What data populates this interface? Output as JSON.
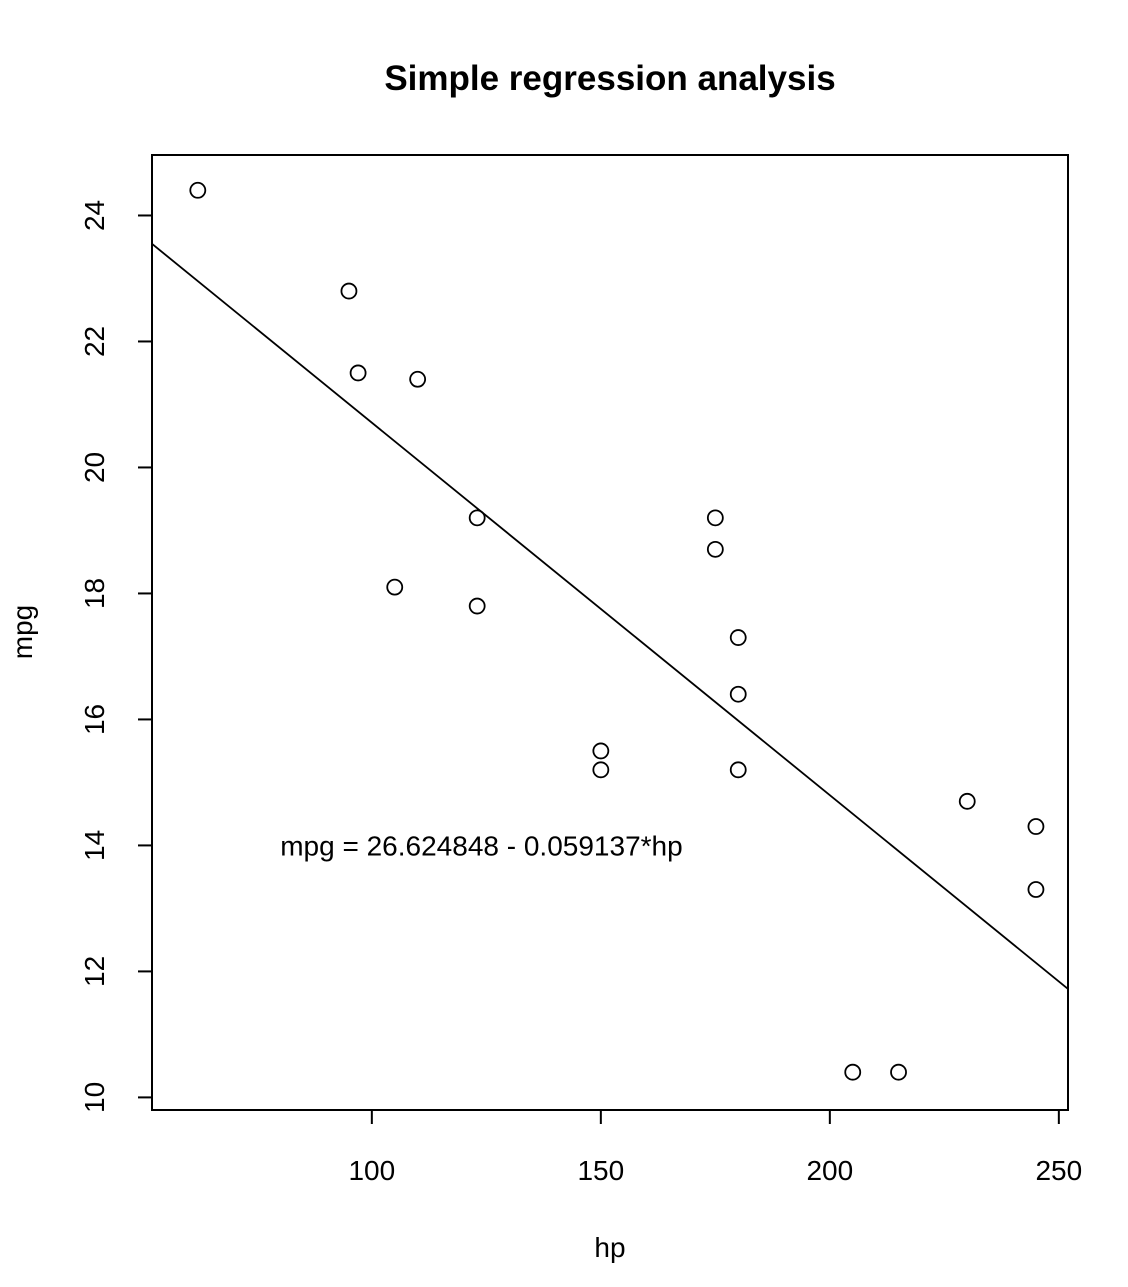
{
  "chart_data": {
    "type": "scatter",
    "title": "Simple regression analysis",
    "xlabel": "hp",
    "ylabel": "mpg",
    "xlim": [
      52,
      252
    ],
    "ylim": [
      9.8,
      24.96
    ],
    "xticks": [
      100,
      150,
      200,
      250
    ],
    "yticks": [
      10,
      12,
      14,
      16,
      18,
      20,
      22,
      24
    ],
    "points": [
      {
        "x": 62,
        "y": 24.4
      },
      {
        "x": 95,
        "y": 22.8
      },
      {
        "x": 97,
        "y": 21.5
      },
      {
        "x": 110,
        "y": 21.4
      },
      {
        "x": 105,
        "y": 18.1
      },
      {
        "x": 123,
        "y": 19.2
      },
      {
        "x": 123,
        "y": 17.8
      },
      {
        "x": 150,
        "y": 15.5
      },
      {
        "x": 150,
        "y": 15.2
      },
      {
        "x": 175,
        "y": 19.2
      },
      {
        "x": 175,
        "y": 18.7
      },
      {
        "x": 180,
        "y": 17.3
      },
      {
        "x": 180,
        "y": 16.4
      },
      {
        "x": 180,
        "y": 15.2
      },
      {
        "x": 205,
        "y": 10.4
      },
      {
        "x": 215,
        "y": 10.4
      },
      {
        "x": 230,
        "y": 14.7
      },
      {
        "x": 245,
        "y": 14.3
      },
      {
        "x": 245,
        "y": 13.3
      }
    ],
    "regression": {
      "intercept": 26.624848,
      "slope": -0.059137
    },
    "annotation": {
      "text": "mpg = 26.624848 - 0.059137*hp",
      "x": 80,
      "y": 14
    }
  }
}
